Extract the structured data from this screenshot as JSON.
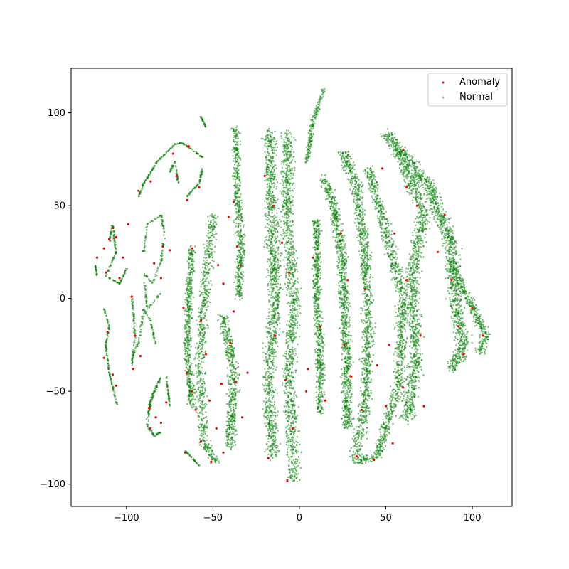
{
  "chart_data": {
    "type": "scatter",
    "title": "",
    "xlabel": "",
    "ylabel": "",
    "xlim": [
      -132,
      123
    ],
    "ylim": [
      -112,
      124
    ],
    "xticks": [
      -100,
      -50,
      0,
      50,
      100
    ],
    "yticks": [
      -100,
      -50,
      0,
      50,
      100
    ],
    "legend_position": "top-right",
    "grid": false,
    "series": [
      {
        "name": "Anomaly",
        "color": "#ff0000",
        "values": [
          [
            -113,
            27
          ],
          [
            -110,
            32
          ],
          [
            -106,
            33
          ],
          [
            -112,
            14
          ],
          [
            -104,
            11
          ],
          [
            -108,
            38
          ],
          [
            -117,
            22
          ],
          [
            -111,
            -18
          ],
          [
            -113,
            -32
          ],
          [
            -106,
            -47
          ],
          [
            -108,
            -41
          ],
          [
            -95,
            -20
          ],
          [
            -96,
            -38
          ],
          [
            -92,
            -31
          ],
          [
            -83,
            -64
          ],
          [
            -86,
            -70
          ],
          [
            -87,
            -59
          ],
          [
            -80,
            -67
          ],
          [
            -77,
            -56
          ],
          [
            -97,
            1
          ],
          [
            -79,
            28
          ],
          [
            -80,
            11
          ],
          [
            -84,
            19
          ],
          [
            -75,
            26
          ],
          [
            -93,
            58
          ],
          [
            -86,
            63
          ],
          [
            -65,
            53
          ],
          [
            -62,
            27
          ],
          [
            -67,
            -5
          ],
          [
            -65,
            -40
          ],
          [
            -60,
            -60
          ],
          [
            -62,
            -50
          ],
          [
            -57,
            -12
          ],
          [
            -54,
            -30
          ],
          [
            -52,
            -55
          ],
          [
            -48,
            -70
          ],
          [
            -44,
            -83
          ],
          [
            -57,
            -77
          ],
          [
            -51,
            -88
          ],
          [
            -66,
            -83
          ],
          [
            -73,
            78
          ],
          [
            -38,
            52
          ],
          [
            -41,
            44
          ],
          [
            -34,
            18
          ],
          [
            -36,
            28
          ],
          [
            -44,
            8
          ],
          [
            -40,
            -24
          ],
          [
            -37,
            -45
          ],
          [
            -33,
            -64
          ],
          [
            -45,
            -46
          ],
          [
            -38,
            -7
          ],
          [
            -30,
            -40
          ],
          [
            -20,
            66
          ],
          [
            -15,
            50
          ],
          [
            -10,
            30
          ],
          [
            -6,
            14
          ],
          [
            -14,
            -20
          ],
          [
            -8,
            -44
          ],
          [
            -4,
            -70
          ],
          [
            -18,
            -86
          ],
          [
            -7,
            -98
          ],
          [
            4,
            -50
          ],
          [
            5,
            -38
          ],
          [
            12,
            -15
          ],
          [
            15,
            -55
          ],
          [
            8,
            22
          ],
          [
            26,
            -25
          ],
          [
            30,
            -42
          ],
          [
            28,
            10
          ],
          [
            24,
            35
          ],
          [
            36,
            -60
          ],
          [
            33,
            -85
          ],
          [
            38,
            5
          ],
          [
            45,
            -36
          ],
          [
            50,
            -58
          ],
          [
            52,
            -25
          ],
          [
            55,
            35
          ],
          [
            60,
            -48
          ],
          [
            54,
            -78
          ],
          [
            43,
            -87
          ],
          [
            62,
            10
          ],
          [
            70,
            -20
          ],
          [
            62,
            60
          ],
          [
            68,
            50
          ],
          [
            72,
            -58
          ],
          [
            80,
            25
          ],
          [
            88,
            10
          ],
          [
            92,
            -15
          ],
          [
            95,
            -30
          ],
          [
            100,
            -5
          ],
          [
            106,
            -20
          ],
          [
            84,
            45
          ],
          [
            60,
            80
          ],
          [
            48,
            70
          ],
          [
            -58,
            60
          ],
          [
            -47,
            18
          ],
          [
            -64,
            82
          ],
          [
            -71,
            66
          ],
          [
            -99,
            40
          ],
          [
            -102,
            22
          ]
        ]
      },
      {
        "name": "Normal",
        "color": "#008000",
        "values": []
      }
    ]
  }
}
